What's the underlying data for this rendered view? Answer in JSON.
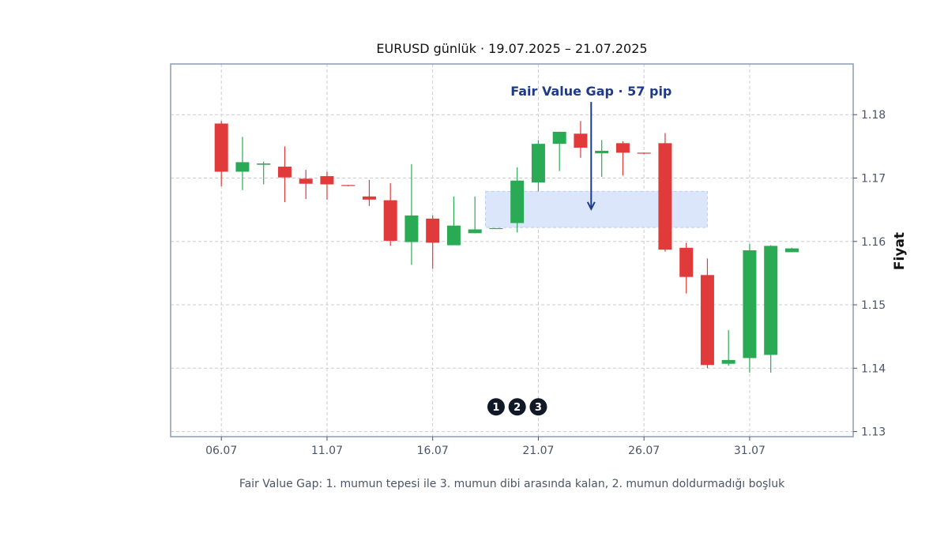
{
  "chart_data": {
    "type": "candlestick",
    "title": "EURUSD günlük · 19.07.2025 – 21.07.2025",
    "ylabel": "Fiyat",
    "xlabel": "",
    "caption": "Fair Value Gap: 1. mumun tepesi ile 3. mumun dibi arasında kalan, 2. mumun doldurmadığı boşluk",
    "x_ticks": [
      {
        "day": 6,
        "label": "06.07"
      },
      {
        "day": 11,
        "label": "11.07"
      },
      {
        "day": 16,
        "label": "16.07"
      },
      {
        "day": 21,
        "label": "21.07"
      },
      {
        "day": 26,
        "label": "26.07"
      },
      {
        "day": 31,
        "label": "31.07"
      }
    ],
    "y_ticks": [
      {
        "value": 1.13,
        "label": "1.13"
      },
      {
        "value": 1.14,
        "label": "1.14"
      },
      {
        "value": 1.15,
        "label": "1.15"
      },
      {
        "value": 1.16,
        "label": "1.16"
      },
      {
        "value": 1.17,
        "label": "1.17"
      },
      {
        "value": 1.18,
        "label": "1.18"
      }
    ],
    "xlim": [
      3.6,
      35.9
    ],
    "ylim": [
      1.1292,
      1.188
    ],
    "grid": true,
    "colors": {
      "up": "#2aaa55",
      "down": "#e03a3a",
      "gap": "#dbe6fb",
      "gap_border": "#b9cdf5",
      "annotation": "#1e3a8a",
      "marker": "#111827",
      "frame": "#8a9bb4"
    },
    "candles": [
      {
        "day": 6,
        "open": 1.1786,
        "high": 1.179,
        "low": 1.1687,
        "close": 1.171
      },
      {
        "day": 7,
        "open": 1.171,
        "high": 1.1765,
        "low": 1.1681,
        "close": 1.1725
      },
      {
        "day": 8,
        "open": 1.1721,
        "high": 1.1726,
        "low": 1.169,
        "close": 1.1723
      },
      {
        "day": 9,
        "open": 1.1718,
        "high": 1.175,
        "low": 1.1662,
        "close": 1.1701
      },
      {
        "day": 10,
        "open": 1.1699,
        "high": 1.1713,
        "low": 1.1667,
        "close": 1.1691
      },
      {
        "day": 11,
        "open": 1.1703,
        "high": 1.171,
        "low": 1.1666,
        "close": 1.169
      },
      {
        "day": 12,
        "open": 1.1689,
        "high": 1.1689,
        "low": 1.1687,
        "close": 1.1688
      },
      {
        "day": 13,
        "open": 1.1671,
        "high": 1.1697,
        "low": 1.1656,
        "close": 1.1666
      },
      {
        "day": 14,
        "open": 1.1665,
        "high": 1.1692,
        "low": 1.1593,
        "close": 1.1601
      },
      {
        "day": 15,
        "open": 1.1599,
        "high": 1.1722,
        "low": 1.1563,
        "close": 1.1641
      },
      {
        "day": 16,
        "open": 1.1636,
        "high": 1.1641,
        "low": 1.1557,
        "close": 1.1598
      },
      {
        "day": 17,
        "open": 1.1594,
        "high": 1.1671,
        "low": 1.1594,
        "close": 1.1625
      },
      {
        "day": 18,
        "open": 1.1613,
        "high": 1.1671,
        "low": 1.1613,
        "close": 1.1619
      },
      {
        "day": 19,
        "open": 1.1621,
        "high": 1.1621,
        "low": 1.1621,
        "close": 1.1621
      },
      {
        "day": 20,
        "open": 1.1629,
        "high": 1.1717,
        "low": 1.1614,
        "close": 1.1696
      },
      {
        "day": 21,
        "open": 1.1693,
        "high": 1.176,
        "low": 1.1679,
        "close": 1.1754
      },
      {
        "day": 22,
        "open": 1.1754,
        "high": 1.1773,
        "low": 1.1711,
        "close": 1.1773
      },
      {
        "day": 23,
        "open": 1.177,
        "high": 1.179,
        "low": 1.1732,
        "close": 1.1748
      },
      {
        "day": 24,
        "open": 1.1739,
        "high": 1.176,
        "low": 1.1702,
        "close": 1.1743
      },
      {
        "day": 25,
        "open": 1.1755,
        "high": 1.1758,
        "low": 1.1704,
        "close": 1.174
      },
      {
        "day": 26,
        "open": 1.174,
        "high": 1.174,
        "low": 1.1738,
        "close": 1.1739
      },
      {
        "day": 27,
        "open": 1.1755,
        "high": 1.1771,
        "low": 1.1584,
        "close": 1.1587
      },
      {
        "day": 28,
        "open": 1.159,
        "high": 1.1598,
        "low": 1.1518,
        "close": 1.1544
      },
      {
        "day": 29,
        "open": 1.1547,
        "high": 1.1573,
        "low": 1.14,
        "close": 1.1405
      },
      {
        "day": 30,
        "open": 1.1407,
        "high": 1.146,
        "low": 1.1404,
        "close": 1.1413
      },
      {
        "day": 31,
        "open": 1.1416,
        "high": 1.1596,
        "low": 1.1393,
        "close": 1.1586
      },
      {
        "day": 32,
        "open": 1.1421,
        "high": 1.1594,
        "low": 1.1393,
        "close": 1.1593
      },
      {
        "day": 33,
        "open": 1.1583,
        "high": 1.159,
        "low": 1.1583,
        "close": 1.1589
      }
    ],
    "gap_zone": {
      "x_start": 18.5,
      "x_end": 29.0,
      "y_low": 1.1622,
      "y_high": 1.1679
    },
    "annotation": {
      "text": "Fair Value Gap · 57 pip",
      "arrow_x": 23.5,
      "arrow_from": 1.182,
      "arrow_to": 1.1651
    },
    "markers": [
      {
        "day": 19,
        "label": "1"
      },
      {
        "day": 20,
        "label": "2"
      },
      {
        "day": 21,
        "label": "3"
      }
    ],
    "marker_y": 1.1339
  }
}
